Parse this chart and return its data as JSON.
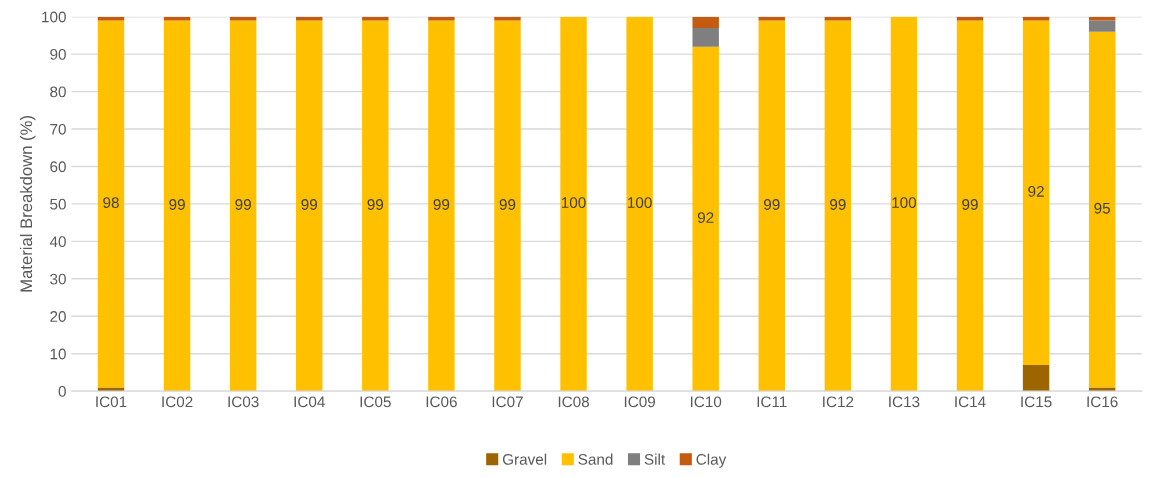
{
  "chart_data": {
    "type": "bar",
    "stacked": true,
    "ylabel": "Material Breakdown (%)",
    "categories": [
      "IC01",
      "IC02",
      "IC03",
      "IC04",
      "IC05",
      "IC06",
      "IC07",
      "IC08",
      "IC09",
      "IC10",
      "IC11",
      "IC12",
      "IC13",
      "IC14",
      "IC15",
      "IC16"
    ],
    "series": [
      {
        "name": "Gravel",
        "color": "#9c6500",
        "values": [
          1,
          0,
          0,
          0,
          0,
          0,
          0,
          0,
          0,
          0,
          0,
          0,
          0,
          0,
          7,
          1
        ]
      },
      {
        "name": "Sand",
        "color": "#ffc000",
        "values": [
          98,
          99,
          99,
          99,
          99,
          99,
          99,
          100,
          100,
          92,
          99,
          99,
          100,
          99,
          92,
          95
        ],
        "value_labels": [
          "98",
          "99",
          "99",
          "99",
          "99",
          "99",
          "99",
          "100",
          "100",
          "92",
          "99",
          "99",
          "100",
          "99",
          "92",
          "95"
        ]
      },
      {
        "name": "Silt",
        "color": "#7f7f7f",
        "values": [
          0,
          0,
          0,
          0,
          0,
          0,
          0,
          0,
          0,
          5,
          0,
          0,
          0,
          0,
          0,
          3
        ]
      },
      {
        "name": "Clay",
        "color": "#c55a11",
        "values": [
          1,
          1,
          1,
          1,
          1,
          1,
          1,
          0,
          0,
          3,
          1,
          1,
          0,
          1,
          1,
          1
        ]
      }
    ],
    "ylim": [
      0,
      100
    ],
    "yticks": [
      0,
      10,
      20,
      30,
      40,
      50,
      60,
      70,
      80,
      90,
      100
    ],
    "grid": "y",
    "legend": "bottom"
  }
}
